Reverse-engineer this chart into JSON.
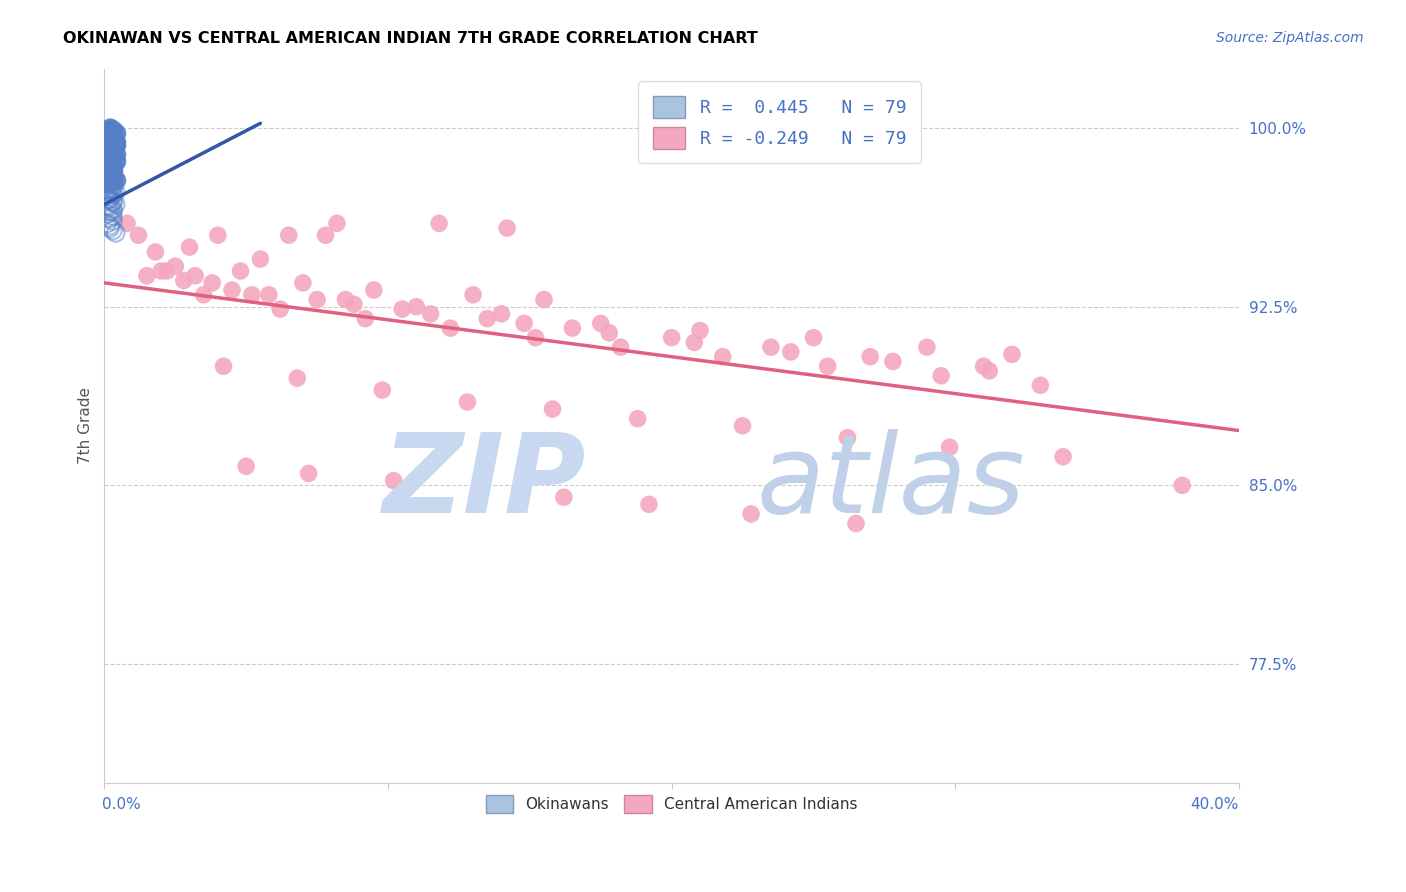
{
  "title": "OKINAWAN VS CENTRAL AMERICAN INDIAN 7TH GRADE CORRELATION CHART",
  "source": "Source: ZipAtlas.com",
  "ylabel": "7th Grade",
  "ytick_labels": [
    "100.0%",
    "92.5%",
    "85.0%",
    "77.5%"
  ],
  "ytick_values": [
    1.0,
    0.925,
    0.85,
    0.775
  ],
  "xlim": [
    0.0,
    0.4
  ],
  "ylim": [
    0.725,
    1.025
  ],
  "legend_r1": "R =  0.445   N = 79",
  "legend_r2": "R = -0.249   N = 79",
  "legend_color1": "#A8C4E0",
  "legend_color2": "#F4A8C0",
  "okinawan_color": "#5580C8",
  "central_color": "#F4A8C0",
  "trendline_okinawan_color": "#3355AA",
  "trendline_central_color": "#E06080",
  "watermark_zip_color": "#C8D8F0",
  "watermark_atlas_color": "#C0D0E8",
  "background_color": "#FFFFFF",
  "grid_color": "#CCCCCC",
  "title_color": "#000000",
  "axis_label_color": "#555555",
  "right_tick_color": "#4472C4",
  "bottom_tick_color": "#4472C4",
  "okinawan_x": [
    0.002,
    0.003,
    0.001,
    0.004,
    0.002,
    0.001,
    0.003,
    0.002,
    0.001,
    0.003,
    0.002,
    0.001,
    0.003,
    0.004,
    0.002,
    0.003,
    0.001,
    0.002,
    0.004,
    0.003,
    0.002,
    0.002,
    0.001,
    0.003,
    0.002,
    0.004,
    0.002,
    0.001,
    0.003,
    0.002,
    0.002,
    0.001,
    0.004,
    0.003,
    0.002,
    0.003,
    0.001,
    0.002,
    0.002,
    0.003,
    0.001,
    0.002,
    0.003,
    0.001,
    0.003,
    0.002,
    0.003,
    0.004,
    0.001,
    0.002,
    0.003,
    0.003,
    0.002,
    0.001,
    0.003,
    0.004,
    0.002,
    0.003,
    0.001,
    0.002,
    0.002,
    0.001,
    0.003,
    0.003,
    0.004,
    0.002,
    0.001,
    0.003,
    0.003,
    0.002,
    0.001,
    0.003,
    0.002,
    0.003,
    0.001,
    0.002,
    0.002,
    0.003,
    0.004
  ],
  "okinawan_y": [
    1.0,
    0.999,
    0.999,
    0.998,
    0.998,
    0.997,
    0.997,
    0.997,
    0.996,
    0.996,
    0.996,
    0.995,
    0.995,
    0.994,
    0.994,
    0.994,
    0.993,
    0.993,
    0.993,
    0.992,
    0.992,
    0.991,
    0.991,
    0.99,
    0.99,
    0.989,
    0.989,
    0.988,
    0.988,
    0.987,
    0.987,
    0.986,
    0.986,
    0.985,
    0.985,
    0.984,
    0.984,
    0.983,
    0.982,
    0.982,
    0.981,
    0.981,
    0.98,
    0.98,
    0.979,
    0.979,
    0.978,
    0.978,
    0.977,
    0.977,
    0.976,
    0.975,
    0.975,
    0.974,
    0.974,
    0.973,
    0.973,
    0.972,
    0.972,
    0.971,
    0.97,
    0.97,
    0.969,
    0.969,
    0.968,
    0.967,
    0.967,
    0.966,
    0.965,
    0.965,
    0.964,
    0.963,
    0.962,
    0.961,
    0.96,
    0.959,
    0.958,
    0.957,
    0.956
  ],
  "central_x": [
    0.008,
    0.082,
    0.012,
    0.118,
    0.142,
    0.078,
    0.04,
    0.065,
    0.03,
    0.018,
    0.055,
    0.025,
    0.048,
    0.032,
    0.022,
    0.07,
    0.095,
    0.13,
    0.155,
    0.02,
    0.038,
    0.058,
    0.085,
    0.11,
    0.14,
    0.175,
    0.21,
    0.25,
    0.29,
    0.32,
    0.015,
    0.045,
    0.075,
    0.105,
    0.135,
    0.165,
    0.2,
    0.235,
    0.27,
    0.31,
    0.028,
    0.052,
    0.088,
    0.115,
    0.148,
    0.178,
    0.208,
    0.242,
    0.278,
    0.312,
    0.035,
    0.062,
    0.092,
    0.122,
    0.152,
    0.182,
    0.218,
    0.255,
    0.295,
    0.33,
    0.042,
    0.068,
    0.098,
    0.128,
    0.158,
    0.188,
    0.225,
    0.262,
    0.298,
    0.338,
    0.05,
    0.072,
    0.102,
    0.132,
    0.162,
    0.192,
    0.228,
    0.265,
    0.38
  ],
  "central_y": [
    0.96,
    0.96,
    0.955,
    0.96,
    0.958,
    0.955,
    0.955,
    0.955,
    0.95,
    0.948,
    0.945,
    0.942,
    0.94,
    0.938,
    0.94,
    0.935,
    0.932,
    0.93,
    0.928,
    0.94,
    0.935,
    0.93,
    0.928,
    0.925,
    0.922,
    0.918,
    0.915,
    0.912,
    0.908,
    0.905,
    0.938,
    0.932,
    0.928,
    0.924,
    0.92,
    0.916,
    0.912,
    0.908,
    0.904,
    0.9,
    0.936,
    0.93,
    0.926,
    0.922,
    0.918,
    0.914,
    0.91,
    0.906,
    0.902,
    0.898,
    0.93,
    0.924,
    0.92,
    0.916,
    0.912,
    0.908,
    0.904,
    0.9,
    0.896,
    0.892,
    0.9,
    0.895,
    0.89,
    0.885,
    0.882,
    0.878,
    0.875,
    0.87,
    0.866,
    0.862,
    0.858,
    0.855,
    0.852,
    0.848,
    0.845,
    0.842,
    0.838,
    0.834,
    0.85
  ],
  "trendline_pink_x0": 0.0,
  "trendline_pink_y0": 0.935,
  "trendline_pink_x1": 0.4,
  "trendline_pink_y1": 0.873,
  "trendline_blue_x0": 0.0,
  "trendline_blue_y0": 0.968,
  "trendline_blue_x1": 0.055,
  "trendline_blue_y1": 1.002
}
